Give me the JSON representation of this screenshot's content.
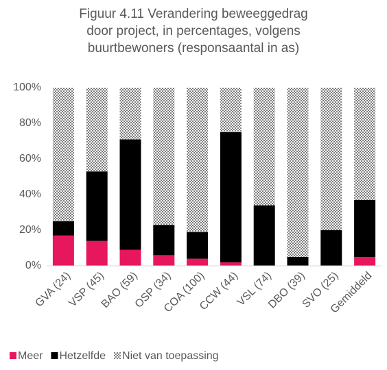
{
  "chart_data": {
    "type": "stacked_bar",
    "title": [
      "Figuur 4.11 Verandering beweeggedrag",
      "door project, in percentages, volgens",
      "buurtbewoners (responsaantal in as)"
    ],
    "categories": [
      "GVA (24)",
      "VSP (45)",
      "BAO (59)",
      "OSP (34)",
      "COA (100)",
      "CCW (44)",
      "VSL (74)",
      "DBO (39)",
      "SVO (25)",
      "Gemiddeld"
    ],
    "series": [
      {
        "name": "Meer",
        "color": "#e6175c",
        "values": [
          17,
          14,
          9,
          6,
          4,
          2,
          0,
          0,
          0,
          5
        ]
      },
      {
        "name": "Hetzelfde",
        "color": "#000000",
        "values": [
          8,
          39,
          62,
          17,
          15,
          73,
          34,
          5,
          20,
          32
        ]
      },
      {
        "name": "Niet van toepassing",
        "color": "#7f7f7f",
        "pattern": "checker",
        "values": [
          75,
          47,
          29,
          77,
          81,
          25,
          66,
          95,
          80,
          63
        ]
      }
    ],
    "ylim": [
      0,
      100
    ],
    "yticks": [
      {
        "value": 0,
        "label": "0%"
      },
      {
        "value": 20,
        "label": "20%"
      },
      {
        "value": 40,
        "label": "40%"
      },
      {
        "value": 60,
        "label": "60%"
      },
      {
        "value": 80,
        "label": "80%"
      },
      {
        "value": 100,
        "label": "100%"
      }
    ],
    "legend": "bottom-left"
  }
}
